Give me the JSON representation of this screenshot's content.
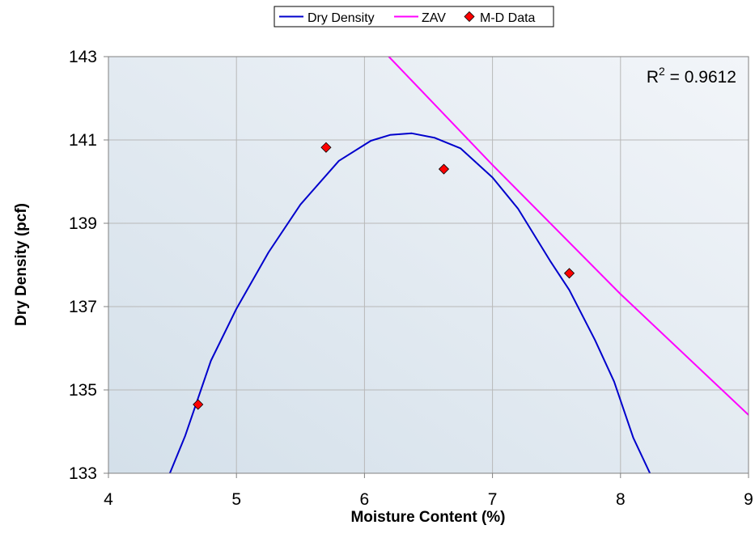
{
  "chart_data": {
    "type": "scatter",
    "title": "",
    "xlabel": "Moisture Content (%)",
    "ylabel": "Dry Density (pcf)",
    "xlim": [
      4,
      9
    ],
    "ylim": [
      133,
      143
    ],
    "x_ticks": [
      4,
      5,
      6,
      7,
      8,
      9
    ],
    "y_ticks": [
      133,
      135,
      137,
      139,
      141,
      143
    ],
    "grid": true,
    "legend_position": "top-center",
    "annotation": {
      "prefix": "R",
      "superscript": "2",
      "suffix": " = 0.9612"
    },
    "series": [
      {
        "name": "Dry Density",
        "kind": "line",
        "color": "#0000CC",
        "x": [
          4.48,
          4.6,
          4.8,
          5.0,
          5.25,
          5.5,
          5.8,
          6.05,
          6.2,
          6.37,
          6.55,
          6.75,
          7.0,
          7.2,
          7.45,
          7.6,
          7.8,
          7.95,
          8.1,
          8.23
        ],
        "y": [
          133.0,
          133.9,
          135.7,
          136.95,
          138.3,
          139.45,
          140.5,
          140.98,
          141.12,
          141.16,
          141.05,
          140.8,
          140.1,
          139.35,
          138.1,
          137.4,
          136.2,
          135.2,
          133.85,
          133.0
        ]
      },
      {
        "name": "ZAV",
        "kind": "line",
        "color": "#FF00FF",
        "x": [
          6.19,
          7.0,
          8.0,
          9.0
        ],
        "y": [
          143.0,
          140.4,
          137.3,
          134.4
        ]
      },
      {
        "name": "M-D Data",
        "kind": "scatter",
        "color": "#FF0000",
        "x": [
          4.7,
          5.7,
          6.62,
          7.6
        ],
        "y": [
          134.65,
          140.82,
          140.3,
          137.8
        ]
      }
    ]
  }
}
